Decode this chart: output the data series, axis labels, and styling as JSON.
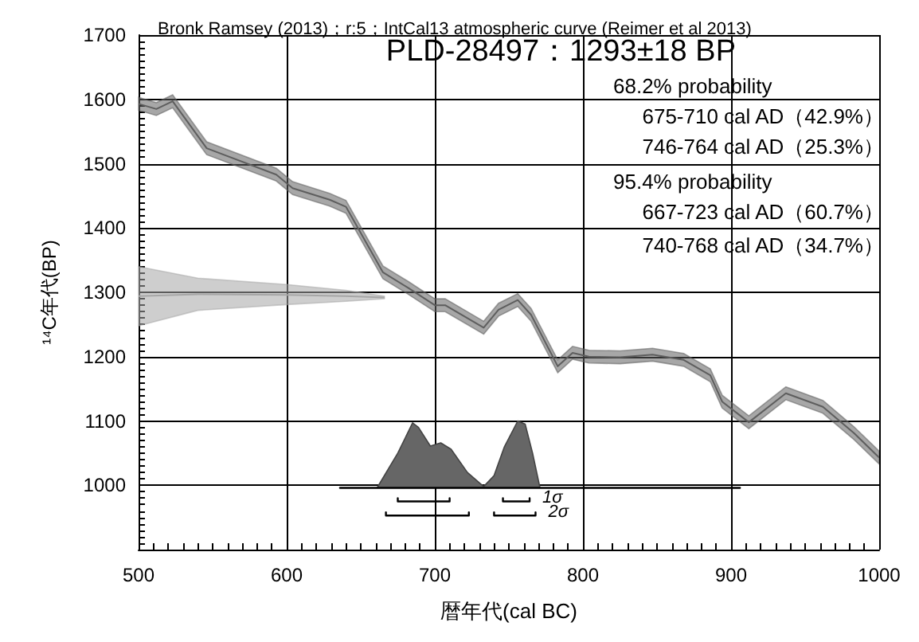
{
  "chart_data": {
    "type": "line",
    "title": "Bronk Ramsey (2013)；r:5；IntCal13 atmospheric curve (Reimer et al 2013)",
    "xlabel": "暦年代(cal BC)",
    "ylabel": "¹⁴C年代(BP)",
    "annotations": [
      "PLD-28497：1293±18 BP",
      "68.2% probability",
      "675-710 cal AD（42.9%）",
      "746-764 cal AD（25.3%）",
      "95.4% probability",
      "667-723 cal AD（60.7%）",
      "740-768 cal AD（34.7%）"
    ],
    "xlim": [
      500,
      1000
    ],
    "xticks": [
      500,
      600,
      700,
      800,
      900,
      1000
    ],
    "ylim": [
      900,
      1700
    ],
    "yticks": [
      1000,
      1100,
      1200,
      1300,
      1400,
      1500,
      1600,
      1700
    ],
    "grid": true,
    "legend": false,
    "series": [
      {
        "color": "#5e5e5e",
        "x": [
          500,
          512,
          523,
          546,
          593,
          604,
          629,
          640,
          665,
          682,
          700,
          707,
          733,
          743,
          756,
          765,
          783,
          793,
          804,
          825,
          847,
          868,
          886,
          894,
          912,
          937,
          962,
          983,
          1000
        ],
        "values": [
          1593,
          1585,
          1597,
          1524,
          1483,
          1462,
          1444,
          1433,
          1331,
          1307,
          1280,
          1280,
          1245,
          1273,
          1288,
          1265,
          1185,
          1206,
          1200,
          1199,
          1203,
          1195,
          1171,
          1130,
          1098,
          1143,
          1122,
          1081,
          1043
        ],
        "lower": [
          1583,
          1575,
          1587,
          1514,
          1473,
          1452,
          1434,
          1423,
          1321,
          1297,
          1270,
          1270,
          1235,
          1263,
          1278,
          1255,
          1175,
          1196,
          1190,
          1189,
          1193,
          1185,
          1161,
          1120,
          1088,
          1133,
          1112,
          1071,
          1033
        ],
        "upper": [
          1603,
          1595,
          1607,
          1534,
          1493,
          1472,
          1454,
          1443,
          1341,
          1317,
          1290,
          1290,
          1255,
          1283,
          1298,
          1275,
          1195,
          1216,
          1210,
          1209,
          1213,
          1205,
          1181,
          1140,
          1108,
          1153,
          1132,
          1091,
          1053
        ]
      },
      {
        "color": "#a6a6a6",
        "x": [
          500,
          540,
          600,
          640,
          666
        ],
        "values": [
          1294,
          1297,
          1296,
          1294,
          1292
        ],
        "lower": [
          1248,
          1272,
          1281,
          1286,
          1290
        ],
        "upper": [
          1340,
          1322,
          1312,
          1303,
          1294
        ]
      },
      {
        "type": "area",
        "color": "#666666",
        "x": [
          661,
          675,
          685,
          689,
          697,
          704,
          711,
          722,
          733,
          740,
          747,
          756,
          761,
          766,
          771
        ],
        "values": [
          996,
          1050,
          1097,
          1090,
          1061,
          1066,
          1056,
          1020,
          998,
          1015,
          1060,
          1100,
          1095,
          1050,
          996
        ]
      },
      {
        "color": "#000000",
        "x": [
          636,
          906
        ],
        "values": [
          996,
          996
        ]
      },
      {
        "name": "1σ",
        "color": "#000000",
        "x": [
          675,
          675,
          710,
          710,
          null,
          746,
          746,
          764,
          764
        ],
        "values": [
          980,
          975,
          975,
          980,
          null,
          980,
          975,
          975,
          980
        ]
      },
      {
        "name": "2σ",
        "color": "#000000",
        "x": [
          667,
          667,
          723,
          723,
          null,
          740,
          740,
          768,
          768
        ],
        "values": [
          958,
          953,
          953,
          958,
          null,
          958,
          953,
          953,
          958
        ]
      }
    ]
  }
}
